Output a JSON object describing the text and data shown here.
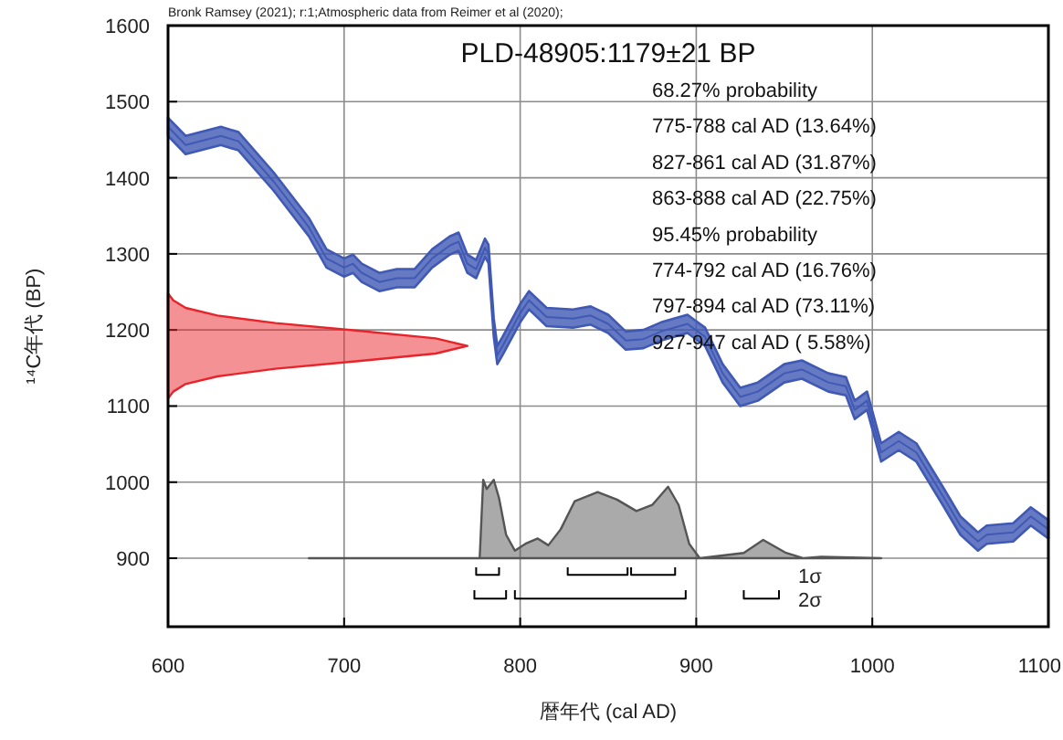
{
  "chart_data": {
    "type": "area",
    "title": "PLD-48905:1179±21 BP",
    "xlabel": "暦年代 (cal AD)",
    "ylabel": "¹⁴C年代 (BP)",
    "annotations": [
      "Bronk Ramsey (2021); r:1;Atmospheric data from Reimer et al (2020);",
      "68.27% probability",
      "775-788 cal AD (13.64%)",
      "827-861 cal AD (31.87%)",
      "863-888 cal AD (22.75%)",
      "95.45% probability",
      "774-792 cal AD (16.76%)",
      "797-894 cal AD (73.11%)",
      "927-947 cal AD ( 5.58%)",
      "1σ",
      "2σ"
    ],
    "xlim": [
      600,
      1100
    ],
    "ylim": [
      810,
      1600
    ],
    "xticks": [
      600,
      700,
      800,
      900,
      1000,
      1100
    ],
    "yticks": [
      900,
      1000,
      1100,
      1200,
      1300,
      1400,
      1500,
      1600
    ],
    "grid": true,
    "series": [
      {
        "type": "line",
        "color": "#4059b4",
        "x": [
          600,
          610,
          630,
          640,
          660,
          680,
          690,
          700,
          705,
          710,
          720,
          730,
          740,
          750,
          760,
          765,
          770,
          775,
          780,
          782,
          785,
          787,
          790,
          800,
          805,
          815,
          830,
          840,
          850,
          860,
          870,
          880,
          895,
          905,
          915,
          925,
          935,
          950,
          960,
          975,
          985,
          990,
          997,
          1005,
          1015,
          1025,
          1040,
          1050,
          1060,
          1065,
          1080,
          1090,
          1100
        ],
        "values": [
          1467,
          1443,
          1455,
          1448,
          1395,
          1335,
          1294,
          1282,
          1287,
          1275,
          1263,
          1268,
          1268,
          1294,
          1311,
          1316,
          1287,
          1280,
          1308,
          1300,
          1203,
          1167,
          1179,
          1222,
          1239,
          1217,
          1215,
          1219,
          1208,
          1186,
          1188,
          1198,
          1208,
          1191,
          1143,
          1112,
          1119,
          1143,
          1148,
          1131,
          1126,
          1095,
          1107,
          1039,
          1054,
          1039,
          982,
          943,
          922,
          931,
          934,
          955,
          938
        ],
        "lower": [
          1455,
          1431,
          1443,
          1436,
          1383,
          1323,
          1282,
          1270,
          1275,
          1263,
          1251,
          1256,
          1256,
          1282,
          1299,
          1304,
          1275,
          1268,
          1296,
          1288,
          1191,
          1155,
          1167,
          1210,
          1227,
          1205,
          1203,
          1207,
          1196,
          1174,
          1176,
          1186,
          1196,
          1179,
          1131,
          1100,
          1107,
          1131,
          1136,
          1119,
          1114,
          1083,
          1095,
          1027,
          1042,
          1027,
          970,
          931,
          910,
          919,
          922,
          943,
          926
        ],
        "upper": [
          1479,
          1455,
          1467,
          1460,
          1407,
          1347,
          1306,
          1294,
          1299,
          1287,
          1275,
          1280,
          1280,
          1306,
          1323,
          1328,
          1299,
          1292,
          1320,
          1312,
          1215,
          1179,
          1191,
          1234,
          1251,
          1229,
          1227,
          1231,
          1220,
          1198,
          1200,
          1210,
          1220,
          1203,
          1155,
          1124,
          1131,
          1155,
          1160,
          1143,
          1138,
          1107,
          1119,
          1051,
          1066,
          1051,
          994,
          955,
          934,
          943,
          946,
          967,
          950
        ]
      },
      {
        "color": "#e8242a",
        "x": [
          600,
          603,
          610,
          628,
          661,
          708,
          752,
          770,
          752,
          708,
          661,
          628,
          610,
          603,
          600
        ],
        "values": [
          1248,
          1239,
          1229,
          1219,
          1209,
          1199,
          1189,
          1179,
          1169,
          1159,
          1149,
          1139,
          1129,
          1119,
          1110
        ]
      },
      {
        "color": "#555555",
        "x": [
          680,
          777,
          779,
          781,
          785,
          788,
          792,
          797,
          803,
          810,
          816,
          823,
          831,
          844,
          855,
          866,
          875,
          884,
          890,
          896,
          902,
          927,
          938,
          951,
          961,
          971,
          1005
        ],
        "values": [
          900,
          900,
          1003,
          991,
          1003,
          979,
          931,
          910,
          919,
          926,
          917,
          938,
          975,
          987,
          977,
          962,
          970,
          994,
          970,
          919,
          900,
          907,
          924,
          907,
          900,
          902,
          900
        ]
      },
      {
        "type": "line",
        "color": "#000000",
        "x": [
          775,
          775,
          788,
          788
        ],
        "values": [
          888,
          878,
          878,
          888
        ]
      },
      {
        "type": "line",
        "color": "#000000",
        "x": [
          827,
          827,
          861,
          861
        ],
        "values": [
          888,
          878,
          878,
          888
        ]
      },
      {
        "type": "line",
        "color": "#000000",
        "x": [
          863,
          863,
          888,
          888
        ],
        "values": [
          888,
          878,
          878,
          888
        ]
      },
      {
        "type": "line",
        "color": "#000000",
        "x": [
          774,
          774,
          792,
          792
        ],
        "values": [
          858,
          847,
          847,
          858
        ]
      },
      {
        "type": "line",
        "color": "#000000",
        "x": [
          797,
          797,
          894,
          894
        ],
        "values": [
          858,
          847,
          847,
          858
        ]
      },
      {
        "type": "line",
        "color": "#000000",
        "x": [
          927,
          927,
          947,
          947
        ],
        "values": [
          858,
          847,
          847,
          858
        ]
      }
    ]
  }
}
